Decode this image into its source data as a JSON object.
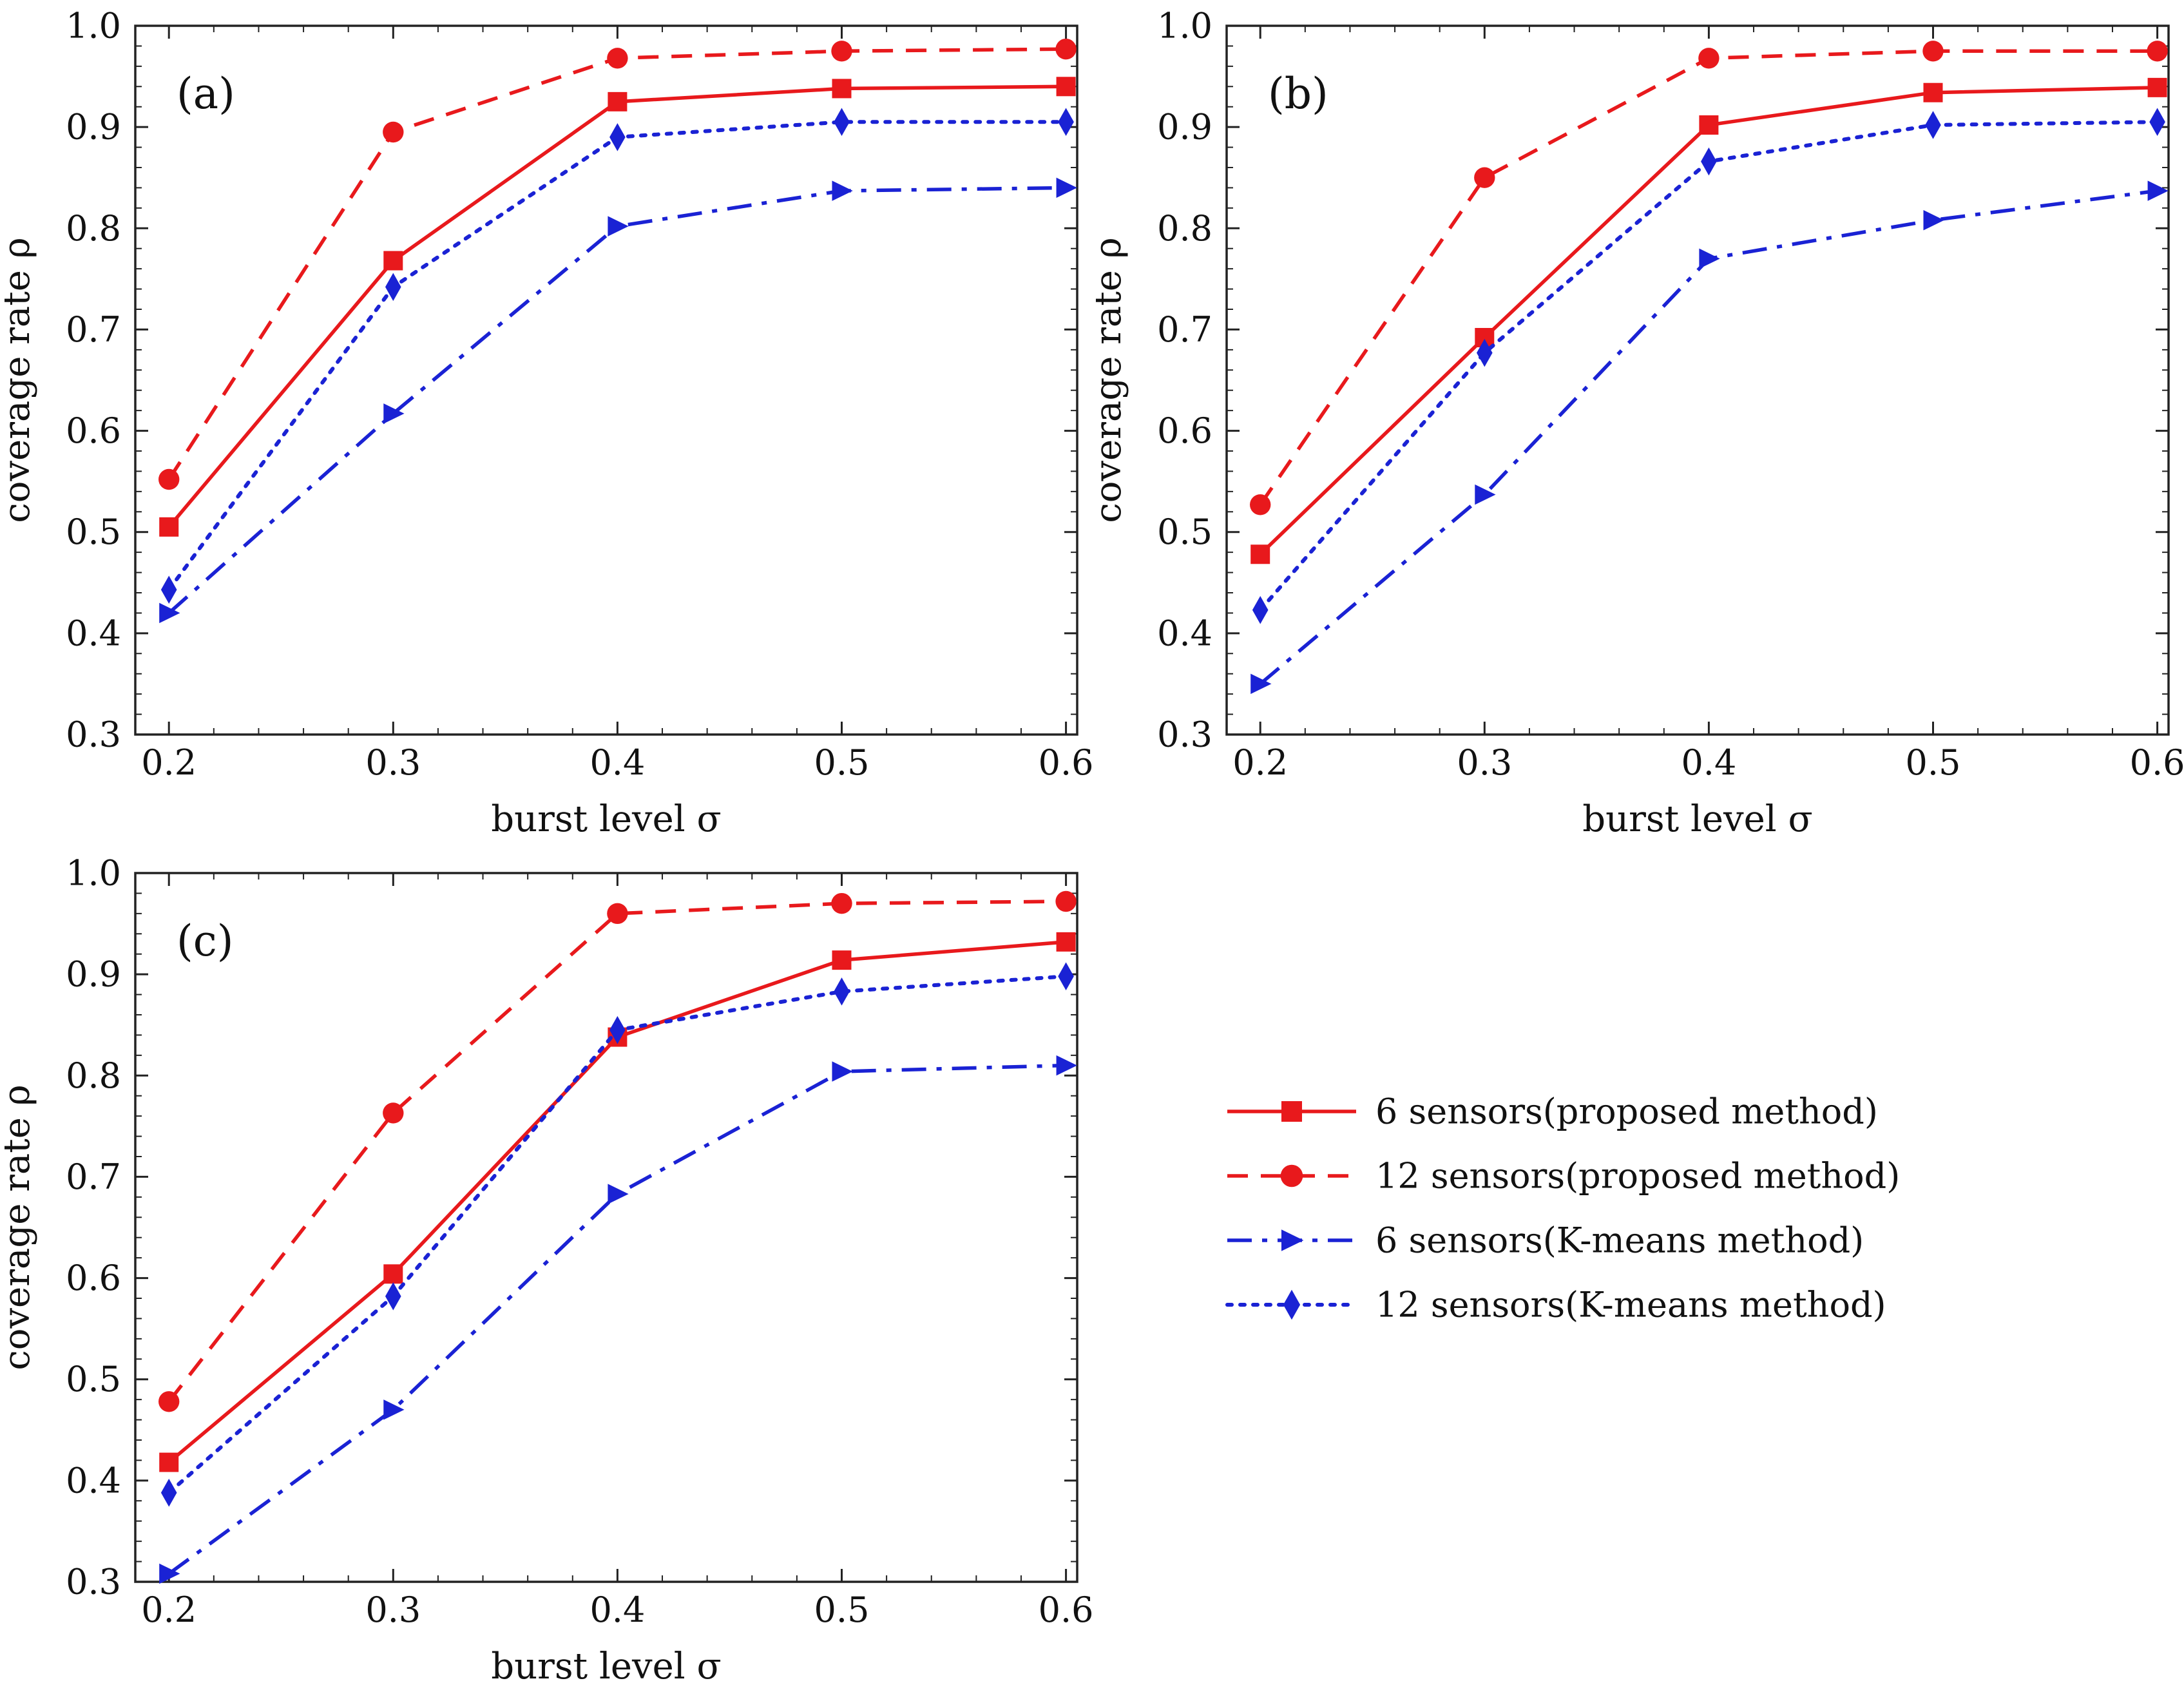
{
  "figure": {
    "legend": {
      "entries": [
        {
          "label": "6 sensors(proposed method)",
          "color": "#e8191c",
          "dash": "solid",
          "marker": "square"
        },
        {
          "label": "12 sensors(proposed method)",
          "color": "#e8191c",
          "dash": "dashed",
          "marker": "circle"
        },
        {
          "label": "6 sensors(K-means method)",
          "color": "#1a22d4",
          "dash": "dashdot",
          "marker": "triangle-right"
        },
        {
          "label": "12 sensors(K-means method)",
          "color": "#1a22d4",
          "dash": "dotted",
          "marker": "diamond"
        }
      ]
    }
  },
  "chart_data": [
    {
      "type": "line",
      "panel_label": "(a)",
      "xlabel": "burst level σ",
      "ylabel": "coverage rate ρ",
      "x": [
        0.2,
        0.3,
        0.4,
        0.5,
        0.6
      ],
      "x_tick_labels": [
        "0.2",
        "0.3",
        "0.4",
        "0.5",
        "0.6"
      ],
      "y_tick_labels": [
        "0.3",
        "0.4",
        "0.5",
        "0.6",
        "0.7",
        "0.8",
        "0.9",
        "1.0"
      ],
      "xlim": [
        0.185,
        0.605
      ],
      "ylim": [
        0.3,
        1.0
      ],
      "series": [
        {
          "name": "6 sensors(proposed method)",
          "values": [
            0.505,
            0.768,
            0.925,
            0.938,
            0.94
          ]
        },
        {
          "name": "12 sensors(proposed method)",
          "values": [
            0.552,
            0.895,
            0.968,
            0.975,
            0.977
          ]
        },
        {
          "name": "6 sensors(K-means method)",
          "values": [
            0.42,
            0.617,
            0.802,
            0.837,
            0.84
          ]
        },
        {
          "name": "12 sensors(K-means method)",
          "values": [
            0.443,
            0.742,
            0.89,
            0.905,
            0.905
          ]
        }
      ]
    },
    {
      "type": "line",
      "panel_label": "(b)",
      "xlabel": "burst level σ",
      "ylabel": "coverage rate ρ",
      "x": [
        0.2,
        0.3,
        0.4,
        0.5,
        0.6
      ],
      "x_tick_labels": [
        "0.2",
        "0.3",
        "0.4",
        "0.5",
        "0.6"
      ],
      "y_tick_labels": [
        "0.3",
        "0.4",
        "0.5",
        "0.6",
        "0.7",
        "0.8",
        "0.9",
        "1.0"
      ],
      "xlim": [
        0.185,
        0.605
      ],
      "ylim": [
        0.3,
        1.0
      ],
      "series": [
        {
          "name": "6 sensors(proposed method)",
          "values": [
            0.478,
            0.692,
            0.902,
            0.934,
            0.939
          ]
        },
        {
          "name": "12 sensors(proposed method)",
          "values": [
            0.527,
            0.85,
            0.968,
            0.975,
            0.975
          ]
        },
        {
          "name": "6 sensors(K-means method)",
          "values": [
            0.35,
            0.537,
            0.77,
            0.808,
            0.837
          ]
        },
        {
          "name": "12 sensors(K-means method)",
          "values": [
            0.423,
            0.677,
            0.866,
            0.902,
            0.905
          ]
        }
      ]
    },
    {
      "type": "line",
      "panel_label": "(c)",
      "xlabel": "burst level σ",
      "ylabel": "coverage rate ρ",
      "x": [
        0.2,
        0.3,
        0.4,
        0.5,
        0.6
      ],
      "x_tick_labels": [
        "0.2",
        "0.3",
        "0.4",
        "0.5",
        "0.6"
      ],
      "y_tick_labels": [
        "0.3",
        "0.4",
        "0.5",
        "0.6",
        "0.7",
        "0.8",
        "0.9",
        "1.0"
      ],
      "xlim": [
        0.185,
        0.605
      ],
      "ylim": [
        0.3,
        1.0
      ],
      "series": [
        {
          "name": "6 sensors(proposed method)",
          "values": [
            0.418,
            0.604,
            0.838,
            0.914,
            0.932
          ]
        },
        {
          "name": "12 sensors(proposed method)",
          "values": [
            0.478,
            0.763,
            0.96,
            0.97,
            0.972
          ]
        },
        {
          "name": "6 sensors(K-means method)",
          "values": [
            0.308,
            0.47,
            0.683,
            0.804,
            0.81
          ]
        },
        {
          "name": "12 sensors(K-means method)",
          "values": [
            0.388,
            0.582,
            0.845,
            0.883,
            0.898
          ]
        }
      ]
    }
  ]
}
